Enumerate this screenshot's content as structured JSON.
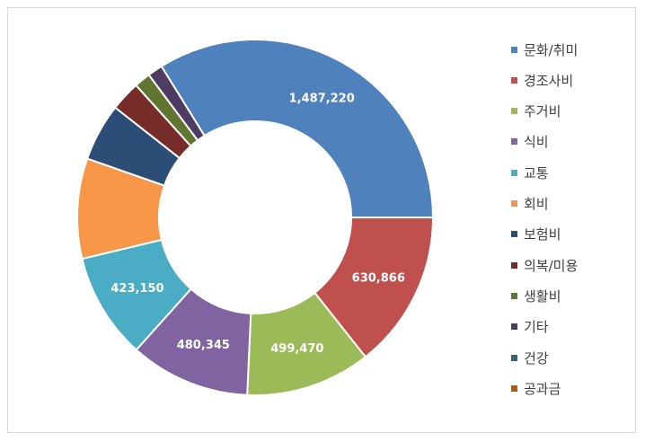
{
  "chart_data": {
    "type": "pie",
    "style": "donut",
    "categories": [
      "문화/취미",
      "경조사비",
      "주거비",
      "식비",
      "교통",
      "회비",
      "보험비",
      "의복/미용",
      "생활비",
      "기타",
      "건강",
      "공과금"
    ],
    "values": [
      1487220,
      630866,
      499470,
      480345,
      423150,
      400000,
      230000,
      120000,
      65000,
      60000,
      0,
      0
    ],
    "data_labels": [
      "1,487,220",
      "630,866",
      "499,470",
      "480,345",
      "423,150",
      "",
      "",
      "",
      "",
      "",
      "",
      ""
    ],
    "colors": [
      "#4F81BD",
      "#C0504D",
      "#9BBB59",
      "#8064A2",
      "#4BACC6",
      "#F79646",
      "#2C4D75",
      "#772C2A",
      "#5F7530",
      "#4D3B62",
      "#276A7C",
      "#B65708"
    ],
    "legend_position": "right"
  }
}
